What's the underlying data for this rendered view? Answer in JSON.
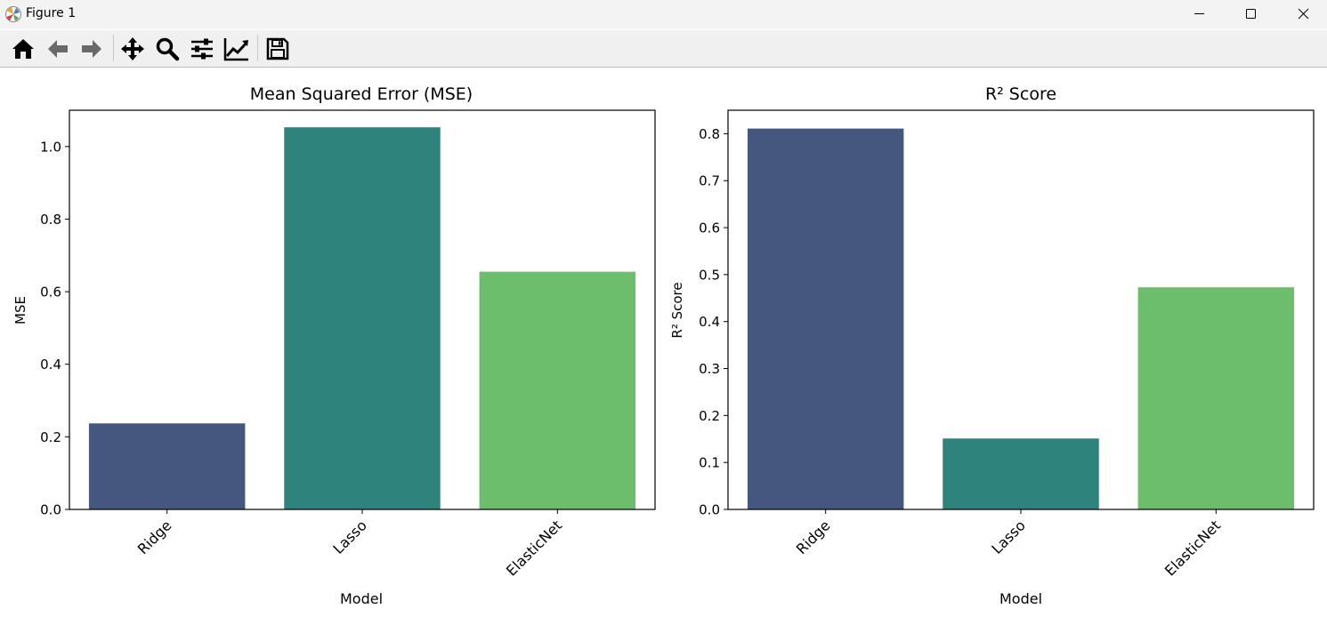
{
  "window": {
    "title": "Figure 1"
  },
  "toolbar": {
    "tools": [
      {
        "name": "home-icon"
      },
      {
        "name": "back-arrow-icon"
      },
      {
        "name": "forward-arrow-icon"
      },
      {
        "name": "pan-move-icon"
      },
      {
        "name": "zoom-magnifier-icon"
      },
      {
        "name": "configure-subplots-icon"
      },
      {
        "name": "edit-axis-icon"
      },
      {
        "name": "save-floppy-icon"
      }
    ]
  },
  "colors": {
    "ridge": "#45567f",
    "lasso": "#2e837c",
    "elasticnet": "#6cbd6c"
  },
  "chart_data": [
    {
      "type": "bar",
      "title": "Mean Squared Error (MSE)",
      "xlabel": "Model",
      "ylabel": "MSE",
      "categories": [
        "Ridge",
        "Lasso",
        "ElasticNet"
      ],
      "values": [
        0.237,
        1.053,
        0.655
      ],
      "ylim": [
        0,
        1.1
      ],
      "yticks": [
        0.0,
        0.2,
        0.4,
        0.6,
        0.8,
        1.0
      ],
      "ytick_labels": [
        "0.0",
        "0.2",
        "0.4",
        "0.6",
        "0.8",
        "1.0"
      ],
      "grid": false,
      "legend": "none"
    },
    {
      "type": "bar",
      "title": "R² Score",
      "xlabel": "Model",
      "ylabel": "R² Score",
      "categories": [
        "Ridge",
        "Lasso",
        "ElasticNet"
      ],
      "values": [
        0.811,
        0.151,
        0.473
      ],
      "ylim": [
        0,
        0.85
      ],
      "yticks": [
        0.0,
        0.1,
        0.2,
        0.3,
        0.4,
        0.5,
        0.6,
        0.7,
        0.8
      ],
      "ytick_labels": [
        "0.0",
        "0.1",
        "0.2",
        "0.3",
        "0.4",
        "0.5",
        "0.6",
        "0.7",
        "0.8"
      ],
      "grid": false,
      "legend": "none"
    }
  ]
}
